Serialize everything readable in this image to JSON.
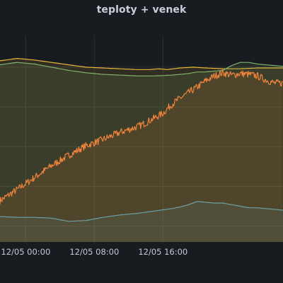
{
  "panel": {
    "title": "teploty + venek"
  },
  "chart_data": {
    "type": "area",
    "title": "teploty + venek",
    "xlabel": "",
    "ylabel": "",
    "x_unit": "hours from 12/04 21:00",
    "xlim": [
      0,
      33
    ],
    "ylim": [
      -2,
      24
    ],
    "grid": true,
    "legend": "none",
    "xticks": [
      {
        "x": 3,
        "label": "12/05 00:00"
      },
      {
        "x": 11,
        "label": "12/05 08:00"
      },
      {
        "x": 19,
        "label": "12/05 16:00"
      }
    ],
    "series": [
      {
        "color": "#eab839",
        "x": [
          0,
          2,
          4,
          6,
          8,
          10,
          12,
          14,
          16,
          17.5,
          18.5,
          19.5,
          21,
          22.5,
          24,
          26,
          28,
          30,
          32,
          33
        ],
        "values": [
          20.8,
          21.1,
          20.9,
          20.6,
          20.3,
          20.0,
          19.9,
          19.8,
          19.7,
          19.7,
          19.8,
          19.7,
          19.9,
          20.0,
          19.9,
          19.8,
          19.8,
          19.9,
          19.9,
          19.9
        ]
      },
      {
        "color": "#7eb26d",
        "x": [
          0,
          2,
          4,
          6,
          8,
          10,
          12,
          14,
          16,
          18,
          20,
          21,
          22,
          23,
          24,
          25,
          26,
          27,
          28,
          29,
          30,
          31,
          32,
          33
        ],
        "values": [
          20.3,
          20.6,
          20.4,
          20.0,
          19.6,
          19.3,
          19.1,
          19.0,
          18.9,
          18.9,
          19.0,
          19.1,
          19.2,
          19.4,
          19.4,
          19.5,
          19.6,
          20.2,
          20.6,
          20.6,
          20.4,
          20.3,
          20.2,
          20.1
        ]
      },
      {
        "color": "#ef843c",
        "x": [
          0,
          2,
          4,
          6,
          8,
          10,
          12,
          14,
          16,
          17,
          18,
          19,
          20,
          21,
          22,
          23,
          24,
          25,
          26,
          27,
          28,
          29,
          30,
          31,
          32,
          33
        ],
        "values": [
          3.2,
          4.6,
          6.1,
          7.6,
          8.9,
          10.1,
          10.9,
          11.8,
          12.5,
          13.0,
          13.6,
          14.2,
          15.3,
          16.1,
          16.8,
          17.5,
          18.3,
          18.9,
          19.3,
          19.0,
          19.2,
          19.1,
          18.9,
          18.4,
          18.0,
          18.0
        ]
      },
      {
        "color": "#6d9fa6",
        "x": [
          0,
          2,
          4,
          6,
          8,
          10,
          12,
          14,
          16,
          18,
          20,
          21,
          22,
          23,
          24,
          25,
          26,
          27,
          28,
          29,
          30,
          31,
          32,
          33
        ],
        "values": [
          1.2,
          1.1,
          1.1,
          1.0,
          0.6,
          0.7,
          1.1,
          1.4,
          1.6,
          1.9,
          2.2,
          2.4,
          2.7,
          3.1,
          3.0,
          2.9,
          2.9,
          2.7,
          2.5,
          2.3,
          2.3,
          2.2,
          2.1,
          2.0
        ]
      }
    ]
  }
}
